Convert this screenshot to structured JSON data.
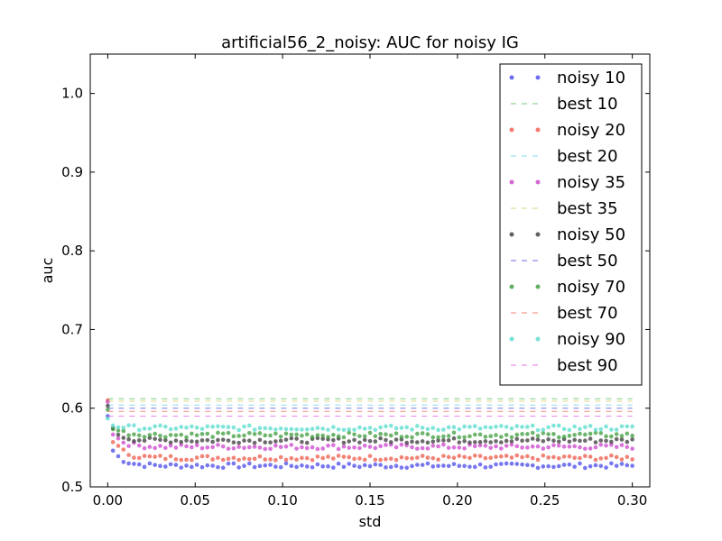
{
  "chart_data": {
    "type": "scatter",
    "title": "artificial56_2_noisy: AUC for noisy IG",
    "xlabel": "std",
    "ylabel": "auc",
    "xlim": [
      -0.01,
      0.31
    ],
    "ylim": [
      0.5,
      1.05
    ],
    "xticks": [
      0.0,
      0.05,
      0.1,
      0.15,
      0.2,
      0.25,
      0.3
    ],
    "xtick_labels": [
      "0.00",
      "0.05",
      "0.10",
      "0.15",
      "0.20",
      "0.25",
      "0.30"
    ],
    "yticks": [
      0.5,
      0.6,
      0.7,
      0.8,
      0.9,
      1.0
    ],
    "ytick_labels": [
      "0.5",
      "0.6",
      "0.7",
      "0.8",
      "0.9",
      "1.0"
    ],
    "grid": false,
    "legend_position": "top-right",
    "x": {
      "start": 0.0,
      "end": 0.3,
      "step": 0.003
    },
    "series": [
      {
        "name": "noisy 10",
        "kind": "noisy",
        "color": "#4a4aeb",
        "start": 0.59,
        "plateau": 0.527,
        "jitter": 0.003
      },
      {
        "name": "best 10",
        "kind": "best",
        "color": "#57b757",
        "value": 0.612
      },
      {
        "name": "noisy 20",
        "kind": "noisy",
        "color": "#ee5a4a",
        "start": 0.61,
        "plateau": 0.537,
        "jitter": 0.003
      },
      {
        "name": "best 20",
        "kind": "best",
        "color": "#66d0ee",
        "value": 0.604
      },
      {
        "name": "noisy 35",
        "kind": "noisy",
        "color": "#cc44cc",
        "start": 0.608,
        "plateau": 0.551,
        "jitter": 0.003
      },
      {
        "name": "best 35",
        "kind": "best",
        "color": "#cccc66",
        "value": 0.609
      },
      {
        "name": "noisy 50",
        "kind": "noisy",
        "color": "#3a3a3a",
        "start": 0.603,
        "plateau": 0.559,
        "jitter": 0.003
      },
      {
        "name": "best 50",
        "kind": "best",
        "color": "#4a4ae6",
        "value": 0.6
      },
      {
        "name": "noisy 70",
        "kind": "noisy",
        "color": "#3c9c3c",
        "start": 0.598,
        "plateau": 0.566,
        "jitter": 0.003
      },
      {
        "name": "best 70",
        "kind": "best",
        "color": "#ee6655",
        "value": 0.596
      },
      {
        "name": "noisy 90",
        "kind": "noisy",
        "color": "#55dbcc",
        "start": 0.587,
        "plateau": 0.575,
        "jitter": 0.003
      },
      {
        "name": "best 90",
        "kind": "best",
        "color": "#e655e6",
        "value": 0.59
      }
    ]
  }
}
